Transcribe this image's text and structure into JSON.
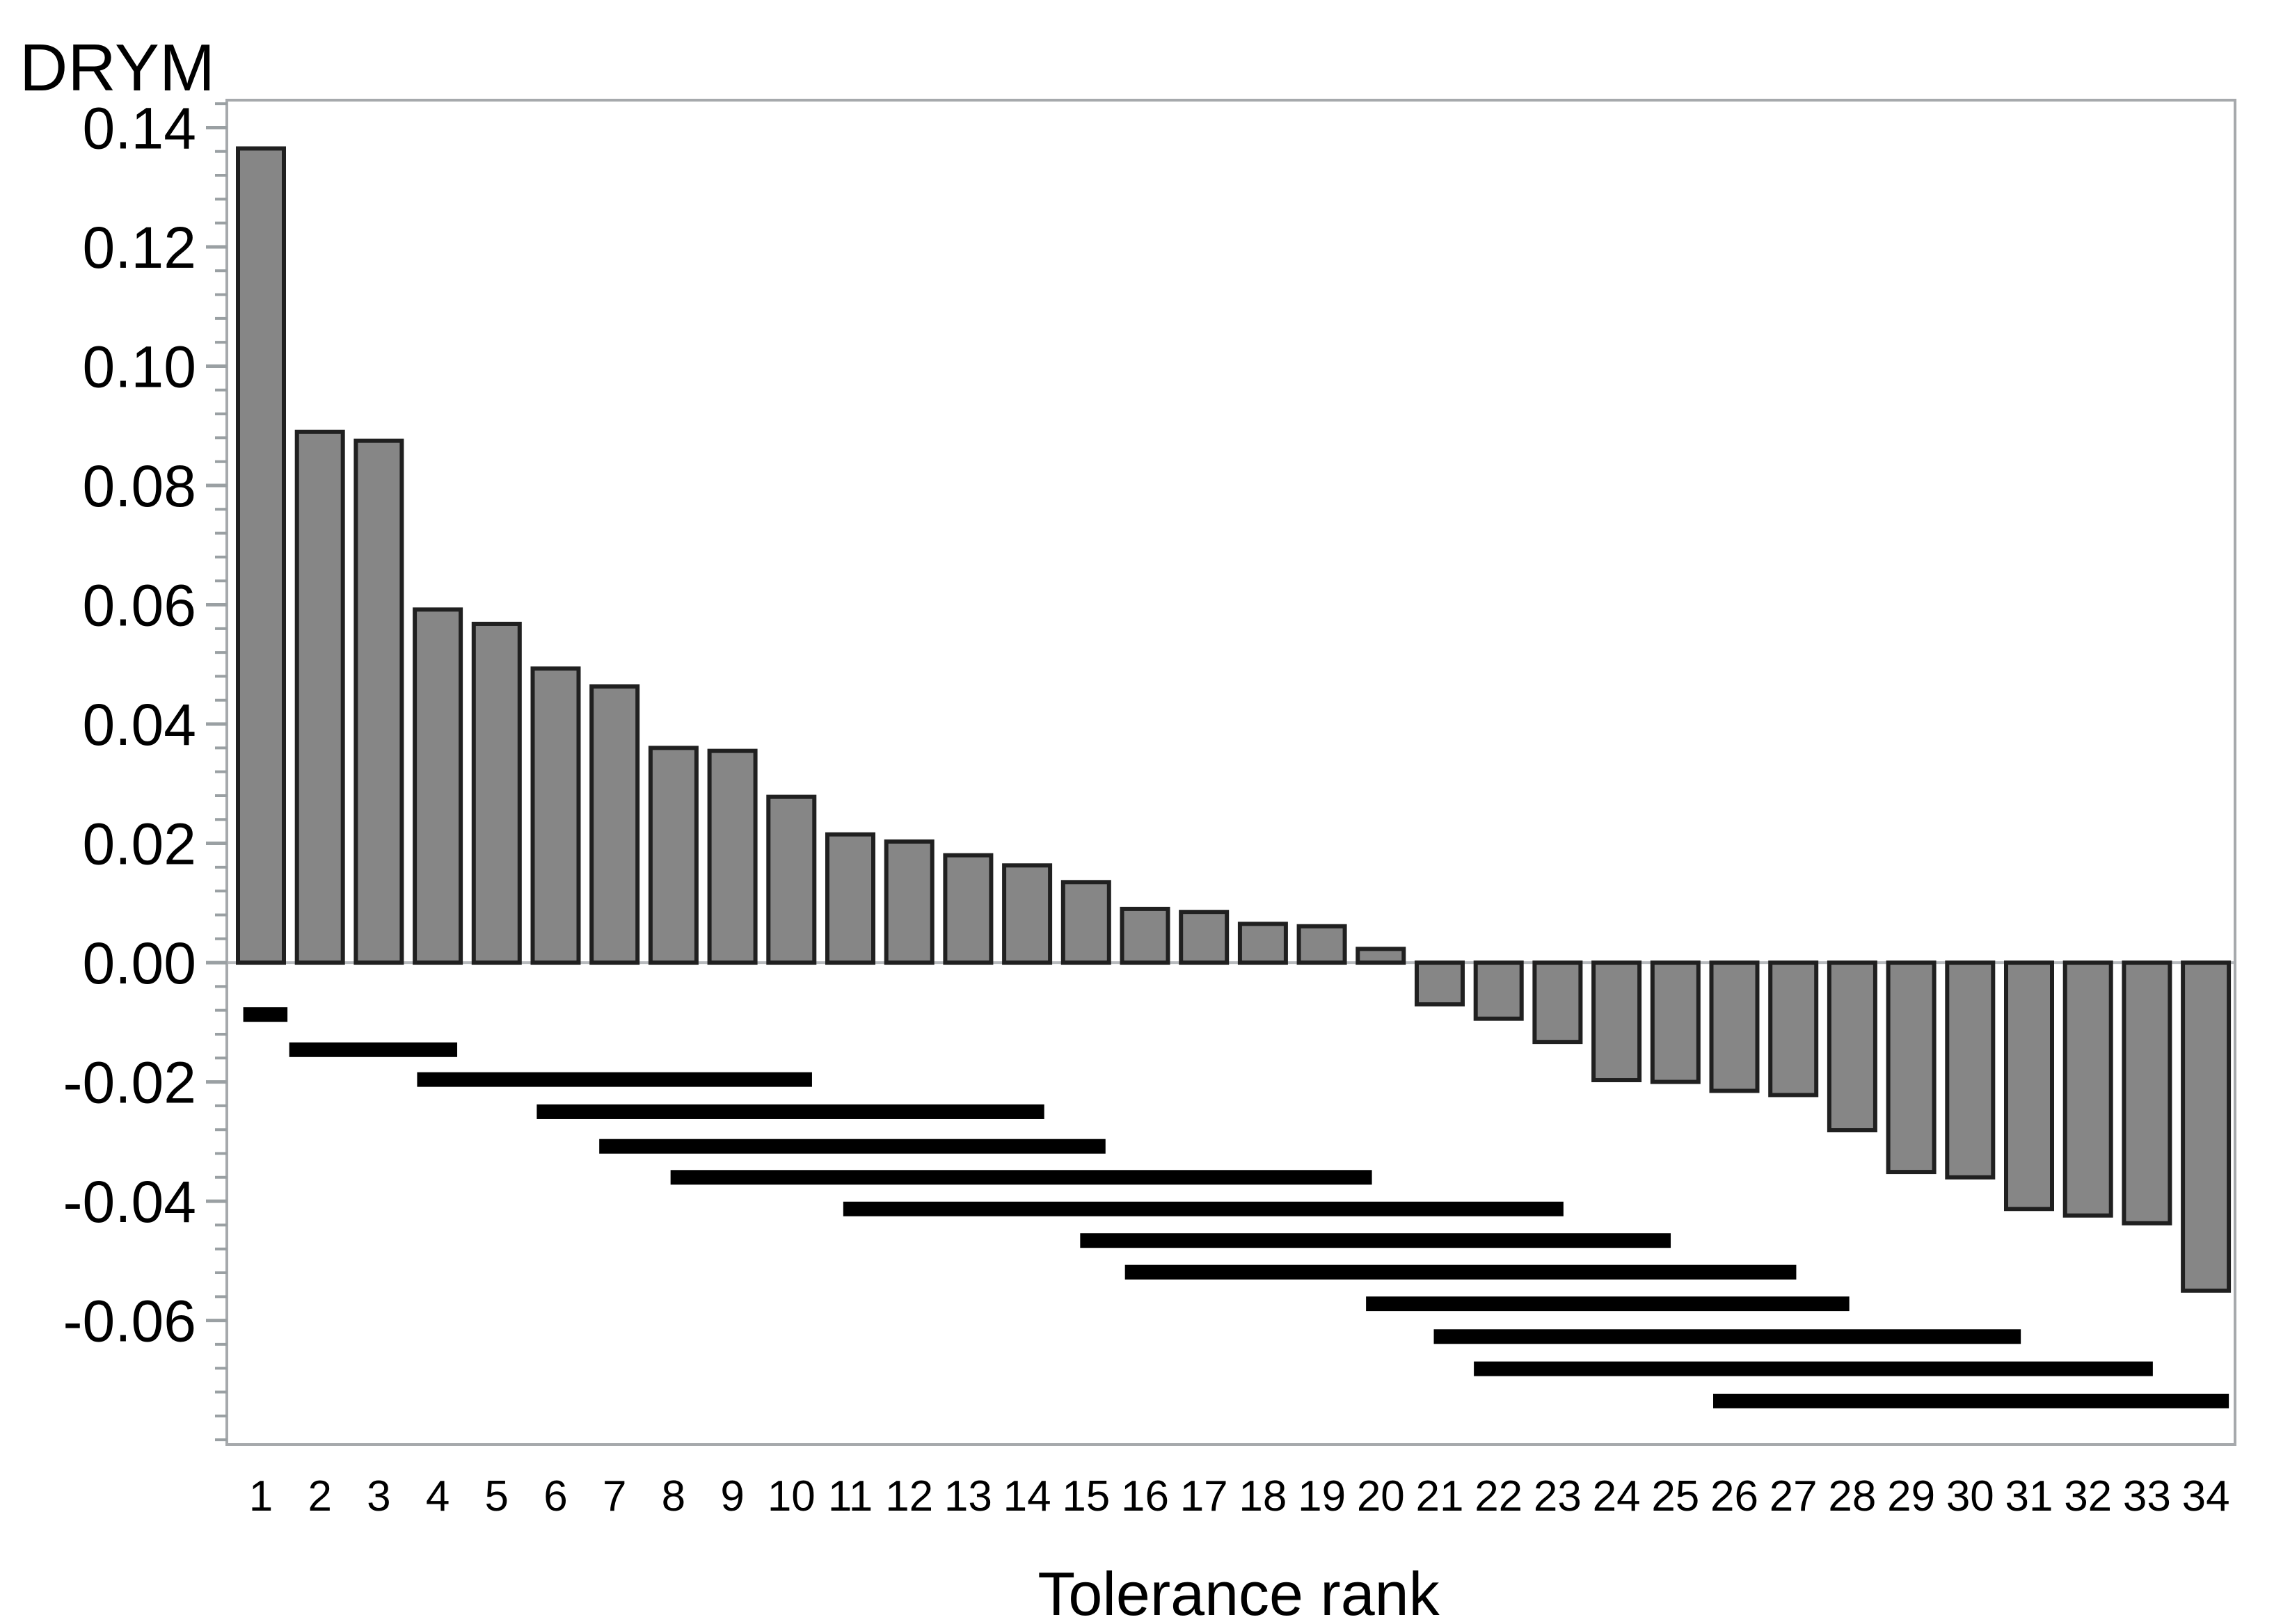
{
  "page": {
    "background": "#ffffff"
  },
  "chart_data": {
    "type": "bar",
    "title_y": "DRYM",
    "xlabel": "Tolerance rank",
    "legend": "none",
    "grid": "off",
    "categories": [
      1,
      2,
      3,
      4,
      5,
      6,
      7,
      8,
      9,
      10,
      11,
      12,
      13,
      14,
      15,
      16,
      17,
      18,
      19,
      20,
      21,
      22,
      23,
      24,
      25,
      26,
      27,
      28,
      29,
      30,
      31,
      32,
      33,
      34
    ],
    "values": [
      0.1365,
      0.089,
      0.0875,
      0.0592,
      0.0568,
      0.0493,
      0.0463,
      0.036,
      0.0355,
      0.0278,
      0.0215,
      0.0203,
      0.018,
      0.0163,
      0.0135,
      0.009,
      0.0085,
      0.0065,
      0.0061,
      0.0023,
      -0.007,
      -0.0094,
      -0.0133,
      -0.0197,
      -0.02,
      -0.0215,
      -0.0222,
      -0.0281,
      -0.0351,
      -0.036,
      -0.0413,
      -0.0424,
      -0.0437,
      -0.055
    ],
    "ylim": [
      -0.0808,
      0.1446
    ],
    "y_major_ticks": [
      {
        "value": 0.14,
        "label": "0.14"
      },
      {
        "value": 0.12,
        "label": "0.12"
      },
      {
        "value": 0.1,
        "label": "0.10"
      },
      {
        "value": 0.08,
        "label": "0.08"
      },
      {
        "value": 0.06,
        "label": "0.06"
      },
      {
        "value": 0.04,
        "label": "0.04"
      },
      {
        "value": 0.02,
        "label": "0.02"
      },
      {
        "value": 0.0,
        "label": "0.00"
      },
      {
        "value": -0.02,
        "label": "-0.02"
      },
      {
        "value": -0.04,
        "label": "-0.04"
      },
      {
        "value": -0.06,
        "label": "-0.06"
      }
    ],
    "y_minor_step": 0.004,
    "comparison_segments": [
      {
        "level": -0.0087,
        "from_rank": 0.7,
        "to_rank": 1.45
      },
      {
        "level": -0.0146,
        "from_rank": 1.48,
        "to_rank": 4.33
      },
      {
        "level": -0.0196,
        "from_rank": 3.65,
        "to_rank": 10.35
      },
      {
        "level": -0.025,
        "from_rank": 5.68,
        "to_rank": 14.29
      },
      {
        "level": -0.0308,
        "from_rank": 6.74,
        "to_rank": 15.33
      },
      {
        "level": -0.036,
        "from_rank": 7.95,
        "to_rank": 19.85
      },
      {
        "level": -0.0413,
        "from_rank": 10.88,
        "to_rank": 23.1
      },
      {
        "level": -0.0466,
        "from_rank": 14.9,
        "to_rank": 24.92
      },
      {
        "level": -0.0519,
        "from_rank": 15.66,
        "to_rank": 27.05
      },
      {
        "level": -0.0572,
        "from_rank": 19.75,
        "to_rank": 27.95
      },
      {
        "level": -0.0627,
        "from_rank": 20.9,
        "to_rank": 30.86
      },
      {
        "level": -0.0681,
        "from_rank": 21.58,
        "to_rank": 33.1
      },
      {
        "level": -0.0735,
        "from_rank": 25.64,
        "to_rank": 34.39
      }
    ],
    "colors": {
      "bar_fill": "#868686",
      "bar_outline": "#202020",
      "segment": "#000000",
      "frame": "#a6a9ac",
      "tick": "#9aa0a3",
      "zero_line": "#b7babd",
      "text": "#000000",
      "background": "#ffffff"
    }
  }
}
